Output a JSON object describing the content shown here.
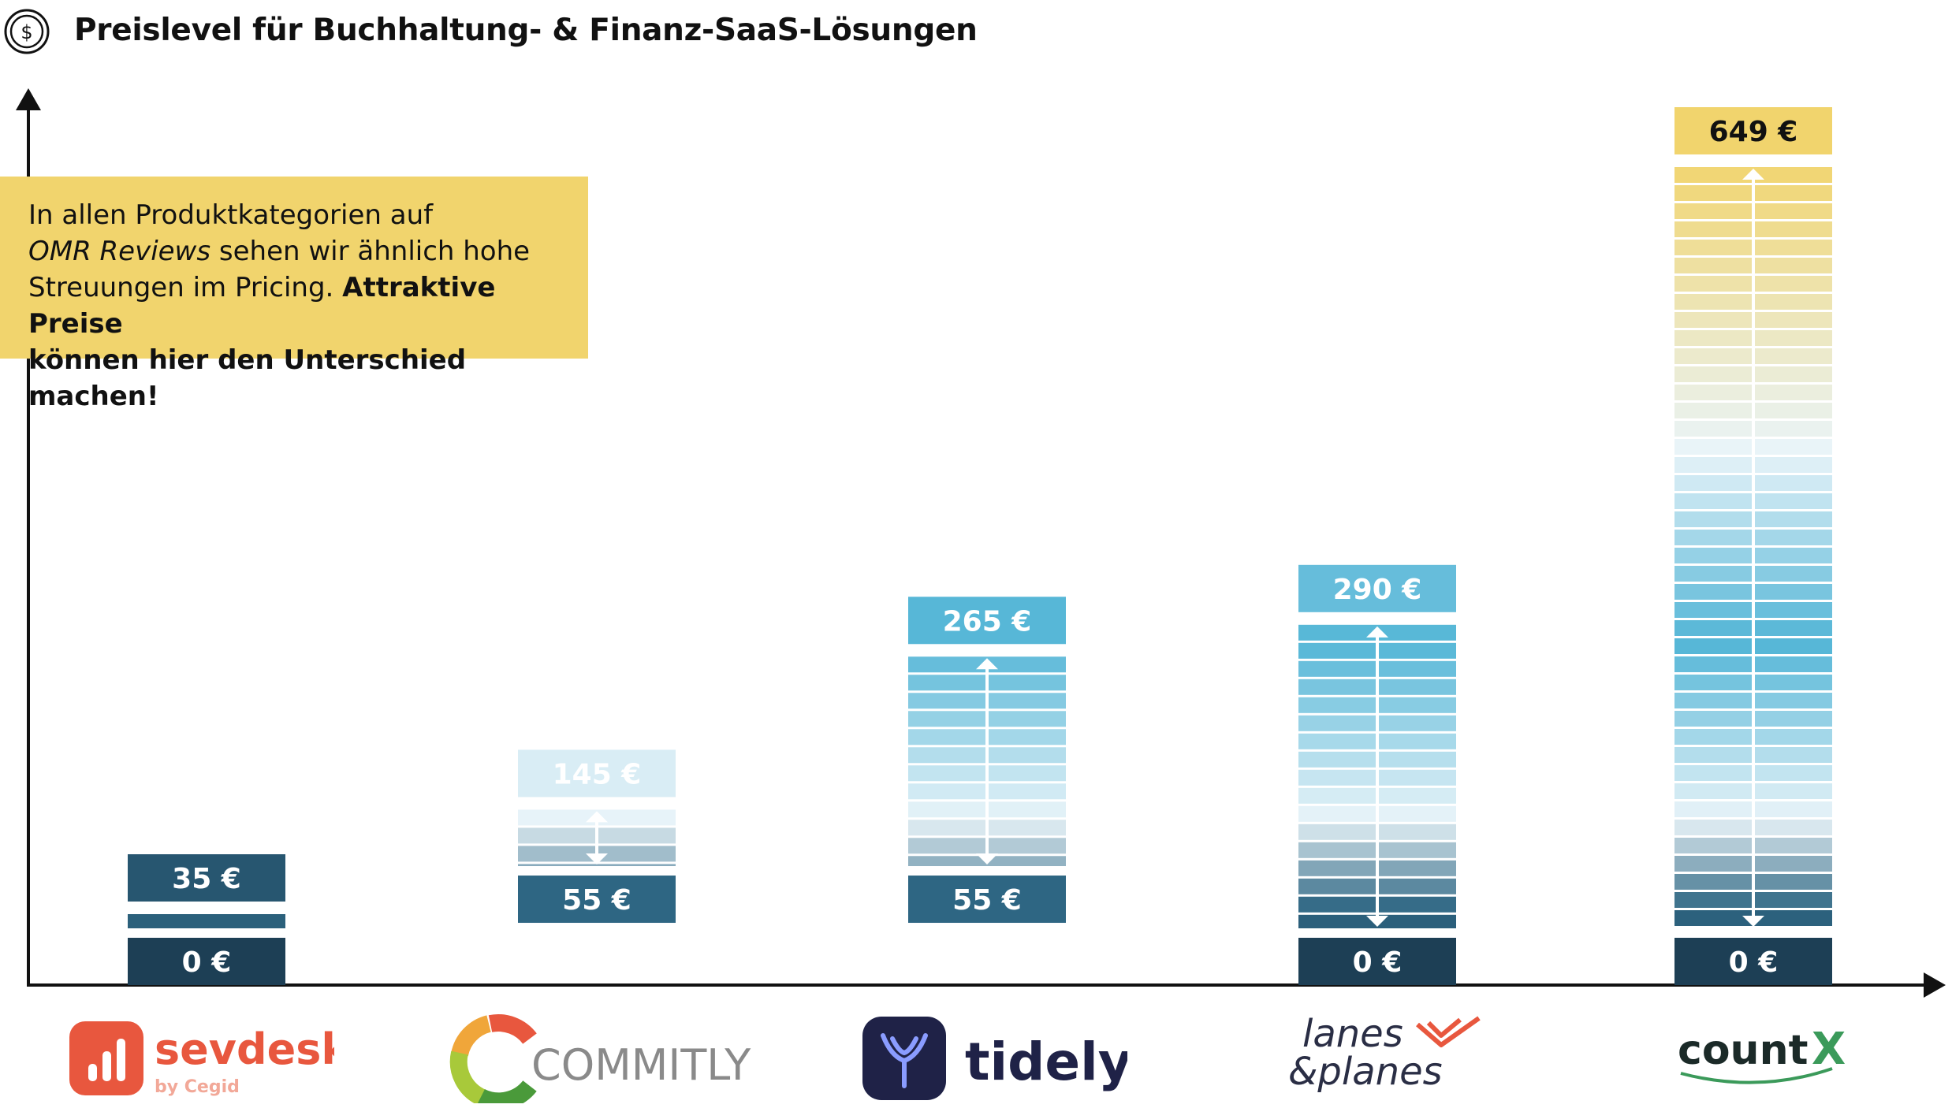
{
  "header": {
    "title": "Preislevel für Buchhaltung- & Finanz-SaaS-Lösungen",
    "icon": "dollar-coin-icon"
  },
  "callout": {
    "line1": "In allen Produktkategorien auf",
    "italic": "OMR Reviews",
    "line2_rest": " sehen wir ähnlich hohe",
    "line3_plain": "Streuungen im Pricing. ",
    "bold_a": "Attraktive Preise",
    "bold_b": "können hier den Unterschied machen!",
    "background": "#f1d46d"
  },
  "chart_data": {
    "type": "bar",
    "subtype": "price-range",
    "title": "Preislevel für Buchhaltung- & Finanz-SaaS-Lösungen",
    "xlabel": "",
    "ylabel": "",
    "unit": "€",
    "ylim": [
      0,
      649
    ],
    "grid": false,
    "categories": [
      "sevdesk",
      "COMMITLY",
      "tidely",
      "lanes & planes",
      "countX"
    ],
    "series": [
      {
        "min": 0,
        "max": 35,
        "min_label": "0 €",
        "max_label": "35 €"
      },
      {
        "min": 55,
        "max": 145,
        "min_label": "55 €",
        "max_label": "145 €"
      },
      {
        "min": 55,
        "max": 265,
        "min_label": "55 €",
        "max_label": "265 €"
      },
      {
        "min": 0,
        "max": 290,
        "min_label": "0 €",
        "max_label": "290 €"
      },
      {
        "min": 0,
        "max": 649,
        "min_label": "0 €",
        "max_label": "649 €"
      }
    ],
    "colors": {
      "dark": "#1d3f55",
      "mid": "#2e6683",
      "grey": "#a8c3d2",
      "blue": "#52b5d6",
      "pale": "#e9f4f9",
      "yellow": "#f1d46d"
    }
  },
  "logos": {
    "sevdesk": {
      "name": "sevdesk",
      "sub": "by Cegid",
      "color": "#e8573e"
    },
    "commitly": {
      "name": "COMMITLY",
      "color": "#8a8a8a"
    },
    "tidely": {
      "name": "tidely",
      "color": "#1f2247"
    },
    "lanes": {
      "line1": "lanes",
      "line2": "&planes",
      "color": "#2a2e45",
      "accent": "#e8573e"
    },
    "countx": {
      "name": "count",
      "x": "X",
      "color": "#1b2a28",
      "accent": "#3b9a5a"
    }
  }
}
